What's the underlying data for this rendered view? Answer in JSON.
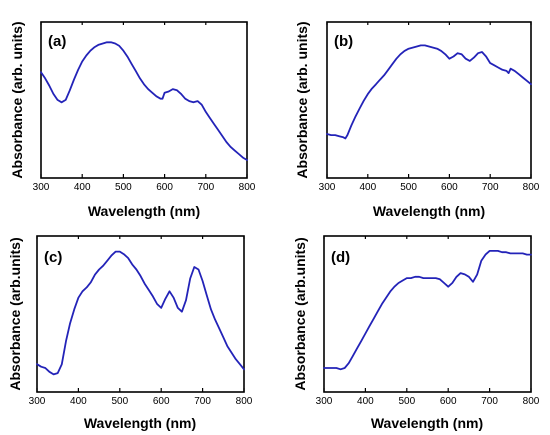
{
  "colors": {
    "line": "#2323b8",
    "axis": "#000000"
  },
  "chart_data": [
    {
      "type": "line",
      "panel_label": "(a)",
      "xlabel": "Wavelength (nm)",
      "ylabel": "Absorbance (arb. units)",
      "xlim": [
        300,
        800
      ],
      "ylim": [
        0,
        1
      ],
      "xticks": [
        "300",
        "400",
        "500",
        "600",
        "700",
        "800"
      ],
      "x": [
        300,
        310,
        320,
        330,
        340,
        350,
        360,
        370,
        380,
        390,
        400,
        410,
        420,
        430,
        440,
        450,
        460,
        470,
        480,
        490,
        500,
        510,
        520,
        530,
        540,
        550,
        560,
        570,
        580,
        590,
        595,
        600,
        610,
        620,
        630,
        640,
        650,
        660,
        670,
        680,
        690,
        700,
        710,
        720,
        730,
        740,
        750,
        760,
        770,
        780,
        790,
        800
      ],
      "y": [
        0.75,
        0.7,
        0.64,
        0.57,
        0.52,
        0.5,
        0.52,
        0.6,
        0.69,
        0.77,
        0.84,
        0.89,
        0.93,
        0.96,
        0.98,
        0.99,
        1.0,
        1.0,
        0.99,
        0.97,
        0.93,
        0.88,
        0.82,
        0.76,
        0.7,
        0.65,
        0.61,
        0.58,
        0.55,
        0.53,
        0.53,
        0.58,
        0.59,
        0.61,
        0.6,
        0.57,
        0.53,
        0.51,
        0.5,
        0.51,
        0.48,
        0.42,
        0.37,
        0.32,
        0.27,
        0.22,
        0.17,
        0.13,
        0.1,
        0.07,
        0.04,
        0.02
      ]
    },
    {
      "type": "line",
      "panel_label": "(b)",
      "xlabel": "Wavelength (nm)",
      "ylabel": "Absorbance (arb. units)",
      "xlim": [
        300,
        800
      ],
      "ylim": [
        0,
        1
      ],
      "xticks": [
        "300",
        "400",
        "500",
        "600",
        "700",
        "800"
      ],
      "x": [
        300,
        310,
        320,
        330,
        340,
        345,
        350,
        360,
        370,
        380,
        390,
        400,
        410,
        420,
        430,
        440,
        450,
        460,
        470,
        480,
        490,
        500,
        510,
        520,
        530,
        540,
        550,
        560,
        570,
        580,
        590,
        600,
        610,
        620,
        630,
        640,
        650,
        660,
        670,
        680,
        690,
        700,
        710,
        720,
        730,
        740,
        745,
        750,
        760,
        770,
        780,
        790,
        800
      ],
      "y": [
        0.2,
        0.19,
        0.19,
        0.18,
        0.17,
        0.16,
        0.19,
        0.28,
        0.36,
        0.43,
        0.5,
        0.56,
        0.61,
        0.65,
        0.69,
        0.73,
        0.78,
        0.83,
        0.88,
        0.92,
        0.95,
        0.97,
        0.98,
        0.99,
        1.0,
        1.0,
        0.99,
        0.98,
        0.97,
        0.95,
        0.92,
        0.88,
        0.9,
        0.93,
        0.92,
        0.88,
        0.86,
        0.89,
        0.93,
        0.94,
        0.9,
        0.84,
        0.82,
        0.8,
        0.78,
        0.77,
        0.75,
        0.79,
        0.77,
        0.74,
        0.71,
        0.68,
        0.65
      ]
    },
    {
      "type": "line",
      "panel_label": "(c)",
      "xlabel": "Wavelength (nm)",
      "ylabel": "Absorbance (arb.units)",
      "xlim": [
        300,
        800
      ],
      "ylim": [
        0,
        1
      ],
      "xticks": [
        "300",
        "400",
        "500",
        "600",
        "700",
        "800"
      ],
      "x": [
        300,
        310,
        320,
        330,
        340,
        350,
        360,
        370,
        380,
        390,
        400,
        410,
        420,
        430,
        440,
        450,
        460,
        470,
        480,
        490,
        500,
        510,
        520,
        530,
        540,
        550,
        560,
        570,
        580,
        590,
        600,
        610,
        620,
        630,
        640,
        650,
        660,
        670,
        680,
        690,
        700,
        710,
        720,
        730,
        740,
        750,
        760,
        770,
        780,
        790,
        800
      ],
      "y": [
        0.12,
        0.1,
        0.09,
        0.06,
        0.04,
        0.05,
        0.12,
        0.3,
        0.44,
        0.55,
        0.64,
        0.69,
        0.72,
        0.76,
        0.82,
        0.86,
        0.89,
        0.93,
        0.97,
        1.0,
        1.0,
        0.98,
        0.95,
        0.9,
        0.86,
        0.81,
        0.75,
        0.7,
        0.65,
        0.59,
        0.56,
        0.63,
        0.69,
        0.64,
        0.56,
        0.53,
        0.62,
        0.79,
        0.88,
        0.86,
        0.77,
        0.66,
        0.55,
        0.47,
        0.4,
        0.33,
        0.26,
        0.21,
        0.16,
        0.12,
        0.08
      ]
    },
    {
      "type": "line",
      "panel_label": "(d)",
      "xlabel": "Wavelength (nm)",
      "ylabel": "Absorbance (arb.units)",
      "xlim": [
        300,
        800
      ],
      "ylim": [
        0,
        1
      ],
      "xticks": [
        "300",
        "400",
        "500",
        "600",
        "700",
        "800"
      ],
      "x": [
        300,
        310,
        320,
        330,
        340,
        350,
        360,
        370,
        380,
        390,
        400,
        410,
        420,
        430,
        440,
        450,
        460,
        470,
        480,
        490,
        500,
        510,
        520,
        530,
        540,
        550,
        560,
        570,
        580,
        590,
        600,
        610,
        620,
        630,
        640,
        650,
        660,
        670,
        680,
        690,
        700,
        710,
        720,
        730,
        740,
        750,
        760,
        770,
        780,
        790,
        800
      ],
      "y": [
        0.03,
        0.03,
        0.03,
        0.03,
        0.02,
        0.03,
        0.07,
        0.13,
        0.19,
        0.25,
        0.31,
        0.37,
        0.43,
        0.49,
        0.55,
        0.6,
        0.65,
        0.69,
        0.72,
        0.74,
        0.76,
        0.76,
        0.77,
        0.77,
        0.76,
        0.76,
        0.76,
        0.76,
        0.75,
        0.72,
        0.69,
        0.72,
        0.77,
        0.8,
        0.79,
        0.77,
        0.73,
        0.79,
        0.9,
        0.95,
        0.98,
        0.98,
        0.98,
        0.97,
        0.97,
        0.96,
        0.96,
        0.96,
        0.96,
        0.95,
        0.95
      ]
    }
  ]
}
